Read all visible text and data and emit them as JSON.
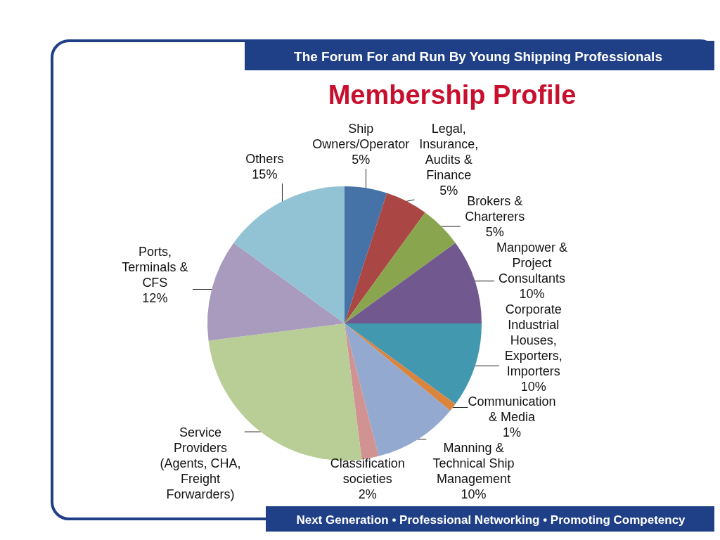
{
  "chart_data": {
    "type": "pie",
    "title": "Membership Profile",
    "subtitle": "The Forum For and Run By Young Shipping Professionals",
    "annotations": [
      "Next Generation • Professional Networking • Promoting Competency"
    ],
    "categories": [
      "Ship Owners/Operator",
      "Legal, Insurance, Audits & Finance",
      "Brokers & Charterers",
      "Manpower & Project Consultants",
      "Corporate Industrial Houses, Exporters, Importers",
      "Communication & Media",
      "Manning & Technical Ship Management",
      "Classification societies",
      "Service Providers (Agents, CHA, Freight Forwarders)",
      "Ports, Terminals & CFS",
      "Others"
    ],
    "values": [
      5,
      5,
      5,
      10,
      10,
      1,
      10,
      2,
      25,
      12,
      15
    ],
    "value_labels": [
      "5%",
      "5%",
      "5%",
      "10%",
      "10%",
      "1%",
      "10%",
      "2%",
      null,
      "12%",
      "15%"
    ],
    "colors": [
      "#4572a7",
      "#aa4643",
      "#89a54e",
      "#71588f",
      "#4198af",
      "#db843d",
      "#93a9cf",
      "#d19392",
      "#b9cd96",
      "#a99bbd",
      "#92c3d5"
    ]
  }
}
